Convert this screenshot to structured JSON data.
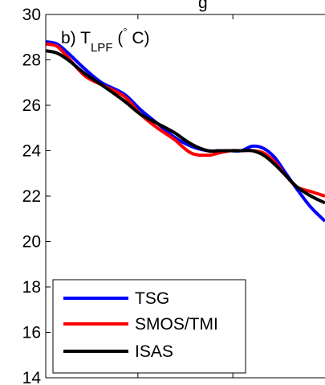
{
  "title_fragment": "g",
  "chart_data": {
    "type": "line",
    "panel_label": {
      "prefix": "b) T",
      "subscript": "LPF",
      "suffix": " (",
      "degree": "°",
      "unit": " C)"
    },
    "ylabel": "",
    "xlabel": "",
    "ylim": [
      14,
      30
    ],
    "yticks": [
      14,
      16,
      18,
      20,
      22,
      24,
      26,
      28,
      30
    ],
    "xlim": [
      0,
      1
    ],
    "xticks": [
      0.33,
      0.67
    ],
    "grid": false,
    "legend": {
      "placement": "bottom-left",
      "entries": [
        "TSG",
        "SMOS/TMI",
        "ISAS"
      ]
    },
    "series": [
      {
        "name": "TSG",
        "color": "#0000ff",
        "x": [
          0.0,
          0.04,
          0.08,
          0.14,
          0.2,
          0.28,
          0.34,
          0.4,
          0.46,
          0.52,
          0.58,
          0.62,
          0.66,
          0.7,
          0.74,
          0.78,
          0.82,
          0.86,
          0.9,
          0.95,
          1.0
        ],
        "y": [
          28.8,
          28.7,
          28.3,
          27.6,
          27.0,
          26.5,
          25.8,
          25.2,
          24.6,
          24.2,
          24.0,
          24.0,
          24.0,
          24.0,
          24.2,
          24.1,
          23.7,
          23.0,
          22.3,
          21.5,
          20.9
        ]
      },
      {
        "name": "SMOS/TMI",
        "color": "#ff0000",
        "x": [
          0.0,
          0.04,
          0.08,
          0.14,
          0.2,
          0.28,
          0.34,
          0.4,
          0.46,
          0.52,
          0.58,
          0.62,
          0.66,
          0.7,
          0.74,
          0.78,
          0.82,
          0.86,
          0.9,
          0.95,
          1.0
        ],
        "y": [
          28.7,
          28.6,
          28.1,
          27.3,
          26.9,
          26.4,
          25.6,
          25.0,
          24.5,
          23.9,
          23.8,
          23.9,
          24.0,
          24.0,
          24.0,
          23.9,
          23.5,
          22.9,
          22.4,
          22.2,
          22.0
        ]
      },
      {
        "name": "ISAS",
        "color": "#000000",
        "x": [
          0.0,
          0.04,
          0.08,
          0.14,
          0.2,
          0.28,
          0.34,
          0.4,
          0.46,
          0.52,
          0.58,
          0.62,
          0.66,
          0.7,
          0.74,
          0.78,
          0.82,
          0.86,
          0.9,
          0.95,
          1.0
        ],
        "y": [
          28.4,
          28.3,
          28.0,
          27.4,
          26.9,
          26.2,
          25.6,
          25.2,
          24.8,
          24.3,
          24.0,
          24.0,
          24.0,
          24.0,
          24.0,
          23.8,
          23.4,
          22.9,
          22.4,
          22.0,
          21.7
        ]
      }
    ]
  }
}
